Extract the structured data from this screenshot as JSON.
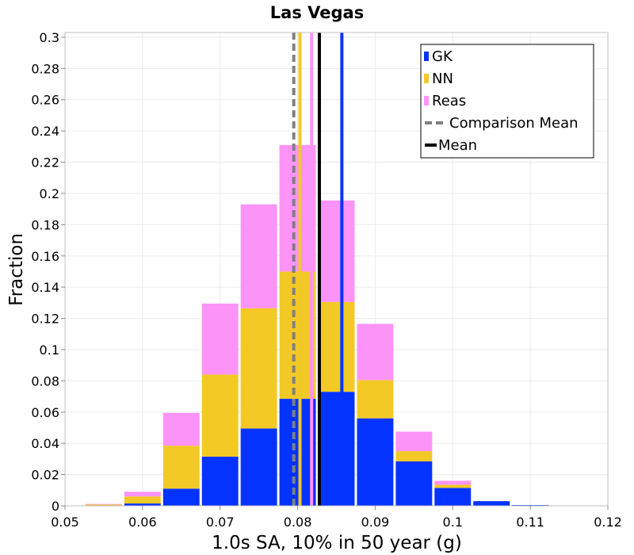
{
  "chart_data": {
    "type": "bar",
    "stacked": true,
    "title": "Las Vegas",
    "xlabel": "1.0s SA, 10% in 50 year (g)",
    "ylabel": "Fraction",
    "xlim": [
      0.05,
      0.12
    ],
    "ylim": [
      0,
      0.303
    ],
    "grid": true,
    "legend_position": "top-right",
    "xticks": [
      "0.05",
      "0.06",
      "0.07",
      "0.08",
      "0.09",
      "0.1",
      "0.11",
      "0.12"
    ],
    "yticks": [
      "0",
      "0.02",
      "0.04",
      "0.06",
      "0.08",
      "0.1",
      "0.12",
      "0.14",
      "0.16",
      "0.18",
      "0.2",
      "0.22",
      "0.24",
      "0.26",
      "0.28",
      "0.3"
    ],
    "bins": [
      {
        "x0": 0.0525,
        "x1": 0.0575
      },
      {
        "x0": 0.0575,
        "x1": 0.0625
      },
      {
        "x0": 0.0625,
        "x1": 0.0675
      },
      {
        "x0": 0.0675,
        "x1": 0.0725
      },
      {
        "x0": 0.0725,
        "x1": 0.0775
      },
      {
        "x0": 0.0775,
        "x1": 0.0825
      },
      {
        "x0": 0.0825,
        "x1": 0.0875
      },
      {
        "x0": 0.0875,
        "x1": 0.0925
      },
      {
        "x0": 0.0925,
        "x1": 0.0975
      },
      {
        "x0": 0.0975,
        "x1": 0.1025
      },
      {
        "x0": 0.1025,
        "x1": 0.1075
      },
      {
        "x0": 0.1075,
        "x1": 0.1125
      },
      {
        "x0": 0.1125,
        "x1": 0.1175
      }
    ],
    "series": [
      {
        "name": "GK",
        "color": "#0433ff",
        "values": [
          0.0,
          0.0015,
          0.011,
          0.0315,
          0.0495,
          0.0685,
          0.073,
          0.056,
          0.0285,
          0.0115,
          0.003,
          0.0005,
          0.0
        ]
      },
      {
        "name": "NN",
        "color": "#f2c925",
        "values": [
          0.0008,
          0.0045,
          0.0275,
          0.0525,
          0.077,
          0.0815,
          0.0575,
          0.0245,
          0.0065,
          0.002,
          0.0,
          0.0,
          0.0
        ]
      },
      {
        "name": "Reas",
        "color": "#fc93f7",
        "values": [
          0.0004,
          0.003,
          0.021,
          0.0455,
          0.0665,
          0.081,
          0.065,
          0.036,
          0.0125,
          0.0025,
          0.0,
          0.0,
          0.0
        ]
      }
    ],
    "vertical_lines": [
      {
        "name": "Comparison Mean",
        "x": 0.0795,
        "color": "#808080",
        "style": "dashed"
      },
      {
        "name": "NN mean",
        "x": 0.0803,
        "color": "#f2c925",
        "style": "solid"
      },
      {
        "name": "Reas mean",
        "x": 0.0818,
        "color": "#fc93f7",
        "style": "solid"
      },
      {
        "name": "GK mean",
        "x": 0.0857,
        "color": "#0433ff",
        "style": "solid"
      },
      {
        "name": "Mean",
        "x": 0.0828,
        "color": "#000000",
        "style": "solid"
      }
    ],
    "legend": [
      {
        "label": "GK",
        "color": "#0433ff",
        "kind": "patch"
      },
      {
        "label": "NN",
        "color": "#f2c925",
        "kind": "patch"
      },
      {
        "label": "Reas",
        "color": "#fc93f7",
        "kind": "patch"
      },
      {
        "label": "Comparison Mean",
        "color": "#808080",
        "kind": "dashed-line"
      },
      {
        "label": "Mean",
        "color": "#000000",
        "kind": "line"
      }
    ]
  }
}
